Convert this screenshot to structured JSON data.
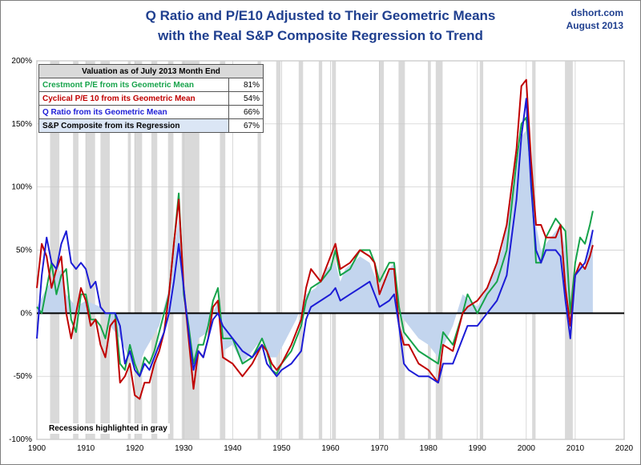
{
  "header": {
    "title_line1": "Q Ratio and P/E10 Adjusted to Their Geometric Means",
    "title_line2": "with the Real S&P Composite Regression to Trend",
    "credit_site": "dshort.com",
    "credit_date": "August 2013"
  },
  "legend": {
    "heading": "Valuation as of July 2013 Month End",
    "rows": [
      {
        "label": "Crestmont P/E from its Geometric Mean",
        "value": "81%",
        "color": "#16a34a"
      },
      {
        "label": "Cyclical P/E 10 from its Geometric Mean",
        "value": "54%",
        "color": "#c00000"
      },
      {
        "label": "Q Ratio from its Geometric Mean",
        "value": "66%",
        "color": "#1c1cd6"
      },
      {
        "label": "S&P Composite from its Regression",
        "value": "67%",
        "color": "#000000"
      }
    ]
  },
  "recession_note": "Recessions highlighted in gray",
  "colors": {
    "crestmont": "#16a34a",
    "pe10": "#c00000",
    "q_ratio": "#1c1cd6",
    "sp_area": "#c3d5ee",
    "recession": "#d9d9d9",
    "zero_line": "#000000",
    "grid": "#c8c8c8"
  },
  "chart_data": {
    "type": "line",
    "xlim": [
      1900,
      2020
    ],
    "ylim": [
      -100,
      200
    ],
    "x_ticks": [
      "1900",
      "1910",
      "1920",
      "1930",
      "1940",
      "1950",
      "1960",
      "1970",
      "1980",
      "1990",
      "2000",
      "2010",
      "2020"
    ],
    "y_ticks": [
      "200%",
      "150%",
      "100%",
      "50%",
      "0%",
      "-50%",
      "-100%"
    ],
    "grid": true,
    "recessions": [
      [
        1902.7,
        1904.6
      ],
      [
        1907.4,
        1908.5
      ],
      [
        1910.0,
        1911.9
      ],
      [
        1913.0,
        1914.9
      ],
      [
        1918.6,
        1919.2
      ],
      [
        1920.0,
        1921.5
      ],
      [
        1923.4,
        1924.6
      ],
      [
        1926.8,
        1927.9
      ],
      [
        1929.6,
        1933.2
      ],
      [
        1937.4,
        1938.5
      ],
      [
        1945.1,
        1945.8
      ],
      [
        1948.9,
        1949.8
      ],
      [
        1953.5,
        1954.4
      ],
      [
        1957.6,
        1958.3
      ],
      [
        1960.3,
        1961.1
      ],
      [
        1969.9,
        1970.9
      ],
      [
        1973.9,
        1975.2
      ],
      [
        1980.0,
        1980.5
      ],
      [
        1981.5,
        1982.9
      ],
      [
        1990.5,
        1991.2
      ],
      [
        2001.2,
        2001.9
      ],
      [
        2007.9,
        2009.5
      ]
    ],
    "series": [
      {
        "name": "S&P Composite from its Regression",
        "kind": "area",
        "x": [
          1900,
          1902,
          1905,
          1906,
          1908,
          1910,
          1913,
          1915,
          1917,
          1920,
          1921,
          1922,
          1925,
          1927,
          1928,
          1929,
          1930,
          1932,
          1933,
          1935,
          1936,
          1937,
          1938,
          1940,
          1942,
          1944,
          1946,
          1947,
          1949,
          1951,
          1953,
          1955,
          1957,
          1959,
          1961,
          1962,
          1963,
          1966,
          1968,
          1970,
          1972,
          1973,
          1974,
          1976,
          1978,
          1980,
          1982,
          1985,
          1987,
          1990,
          1992,
          1995,
          1997,
          1999,
          2000,
          2001,
          2002,
          2003,
          2005,
          2007,
          2008,
          2009,
          2010,
          2011,
          2012,
          2013,
          2013.6
        ],
        "y": [
          5,
          20,
          35,
          15,
          5,
          10,
          5,
          -10,
          -20,
          -45,
          -40,
          -30,
          -10,
          20,
          50,
          75,
          10,
          -40,
          -20,
          -15,
          0,
          10,
          -30,
          -25,
          -40,
          -30,
          -20,
          -35,
          -35,
          -20,
          -5,
          15,
          20,
          35,
          40,
          25,
          35,
          45,
          40,
          20,
          35,
          40,
          0,
          -10,
          -20,
          -25,
          -35,
          -10,
          15,
          5,
          20,
          50,
          95,
          140,
          145,
          110,
          70,
          50,
          60,
          70,
          50,
          -5,
          30,
          40,
          35,
          55,
          67
        ]
      },
      {
        "name": "Crestmont P/E from its Geometric Mean",
        "kind": "line",
        "x": [
          1900,
          1901,
          1902,
          1903,
          1904,
          1905,
          1906,
          1907,
          1908,
          1909,
          1910,
          1911,
          1912,
          1913,
          1914,
          1915,
          1916,
          1917,
          1918,
          1919,
          1920,
          1921,
          1922,
          1923,
          1924,
          1925,
          1926,
          1927,
          1928,
          1929,
          1930,
          1931,
          1932,
          1933,
          1934,
          1935,
          1936,
          1937,
          1938,
          1940,
          1942,
          1944,
          1946,
          1947,
          1948,
          1949,
          1950,
          1952,
          1954,
          1955,
          1956,
          1958,
          1960,
          1961,
          1962,
          1964,
          1966,
          1968,
          1969,
          1970,
          1972,
          1973,
          1974,
          1975,
          1976,
          1978,
          1980,
          1982,
          1983,
          1985,
          1987,
          1988,
          1990,
          1992,
          1994,
          1996,
          1998,
          1999,
          2000,
          2001,
          2002,
          2003,
          2004,
          2006,
          2007,
          2008,
          2009,
          2010,
          2011,
          2012,
          2013,
          2013.6
        ],
        "y": [
          5,
          0,
          20,
          40,
          15,
          30,
          35,
          -5,
          -15,
          15,
          15,
          -5,
          -5,
          -10,
          -20,
          0,
          0,
          -40,
          -45,
          -25,
          -40,
          -50,
          -35,
          -40,
          -30,
          -15,
          0,
          15,
          55,
          95,
          15,
          -10,
          -40,
          -25,
          -25,
          -10,
          10,
          20,
          -20,
          -20,
          -40,
          -35,
          -20,
          -30,
          -45,
          -48,
          -40,
          -30,
          -10,
          10,
          20,
          25,
          35,
          50,
          30,
          35,
          50,
          50,
          40,
          25,
          40,
          40,
          5,
          -15,
          -20,
          -30,
          -35,
          -40,
          -15,
          -25,
          0,
          15,
          0,
          15,
          25,
          50,
          120,
          150,
          155,
          110,
          40,
          40,
          60,
          75,
          70,
          65,
          0,
          40,
          60,
          55,
          70,
          81
        ]
      },
      {
        "name": "Cyclical P/E 10 from its Geometric Mean",
        "kind": "line",
        "x": [
          1900,
          1901,
          1902,
          1903,
          1904,
          1905,
          1906,
          1907,
          1908,
          1909,
          1910,
          1911,
          1912,
          1913,
          1914,
          1915,
          1916,
          1917,
          1918,
          1919,
          1920,
          1921,
          1922,
          1923,
          1924,
          1925,
          1926,
          1927,
          1928,
          1929,
          1930,
          1931,
          1932,
          1933,
          1934,
          1935,
          1936,
          1937,
          1938,
          1940,
          1942,
          1944,
          1946,
          1947,
          1948,
          1949,
          1950,
          1952,
          1954,
          1955,
          1956,
          1958,
          1960,
          1961,
          1962,
          1964,
          1966,
          1968,
          1969,
          1970,
          1972,
          1973,
          1974,
          1975,
          1976,
          1978,
          1980,
          1982,
          1983,
          1985,
          1987,
          1988,
          1990,
          1992,
          1994,
          1996,
          1998,
          1999,
          2000,
          2001,
          2002,
          2003,
          2004,
          2006,
          2007,
          2008,
          2009,
          2010,
          2011,
          2012,
          2013,
          2013.6
        ],
        "y": [
          20,
          55,
          45,
          20,
          35,
          45,
          0,
          -20,
          0,
          20,
          10,
          -10,
          -5,
          -25,
          -35,
          -10,
          -5,
          -55,
          -50,
          -40,
          -65,
          -68,
          -55,
          -55,
          -40,
          -30,
          -15,
          15,
          55,
          90,
          20,
          -20,
          -60,
          -30,
          -35,
          -20,
          5,
          10,
          -35,
          -40,
          -50,
          -40,
          -25,
          -30,
          -40,
          -45,
          -40,
          -25,
          -5,
          20,
          35,
          25,
          45,
          55,
          35,
          40,
          50,
          45,
          40,
          15,
          35,
          35,
          -10,
          -25,
          -25,
          -40,
          -45,
          -55,
          -25,
          -30,
          0,
          5,
          10,
          20,
          40,
          70,
          130,
          180,
          185,
          120,
          70,
          70,
          60,
          60,
          70,
          20,
          -10,
          30,
          40,
          35,
          45,
          54
        ]
      },
      {
        "name": "Q Ratio from its Geometric Mean",
        "kind": "line",
        "x": [
          1900,
          1901,
          1902,
          1903,
          1904,
          1905,
          1906,
          1907,
          1908,
          1909,
          1910,
          1911,
          1912,
          1913,
          1914,
          1915,
          1916,
          1917,
          1918,
          1919,
          1920,
          1921,
          1922,
          1923,
          1924,
          1925,
          1926,
          1927,
          1928,
          1929,
          1930,
          1931,
          1932,
          1933,
          1934,
          1935,
          1936,
          1937,
          1938,
          1940,
          1942,
          1944,
          1946,
          1947,
          1948,
          1949,
          1950,
          1952,
          1954,
          1955,
          1956,
          1958,
          1960,
          1961,
          1962,
          1964,
          1966,
          1968,
          1969,
          1970,
          1972,
          1973,
          1974,
          1975,
          1976,
          1978,
          1980,
          1982,
          1983,
          1985,
          1987,
          1988,
          1990,
          1992,
          1994,
          1996,
          1998,
          1999,
          2000,
          2001,
          2002,
          2003,
          2004,
          2006,
          2007,
          2008,
          2009,
          2010,
          2011,
          2012,
          2013,
          2013.6
        ],
        "y": [
          -20,
          30,
          60,
          40,
          35,
          55,
          65,
          40,
          35,
          40,
          35,
          20,
          25,
          5,
          0,
          0,
          0,
          -10,
          -40,
          -30,
          -45,
          -50,
          -40,
          -45,
          -35,
          -25,
          -15,
          0,
          25,
          55,
          20,
          -15,
          -45,
          -30,
          -35,
          -20,
          -5,
          0,
          -10,
          -20,
          -30,
          -35,
          -25,
          -40,
          -45,
          -50,
          -45,
          -40,
          -30,
          -5,
          5,
          10,
          15,
          20,
          10,
          15,
          20,
          25,
          15,
          5,
          10,
          15,
          -10,
          -40,
          -45,
          -50,
          -50,
          -55,
          -40,
          -40,
          -20,
          -10,
          -10,
          0,
          10,
          30,
          90,
          140,
          170,
          100,
          50,
          40,
          50,
          50,
          45,
          10,
          -20,
          30,
          35,
          40,
          55,
          66
        ]
      }
    ]
  }
}
